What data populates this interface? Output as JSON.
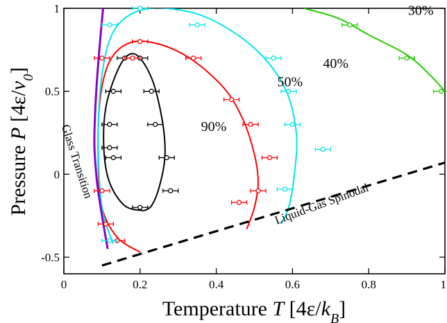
{
  "chart_data": {
    "type": "scatter",
    "xlabel": "Temperature T [4ε/k_B]",
    "ylabel": "Pressure P [4ε/v_0]",
    "xlim": [
      0,
      1
    ],
    "ylim": [
      -0.6,
      1
    ],
    "xticks": [
      {
        "value": 0,
        "label": "0"
      },
      {
        "value": 0.2,
        "label": "0.2"
      },
      {
        "value": 0.4,
        "label": "0.4"
      },
      {
        "value": 0.6,
        "label": "0.6"
      },
      {
        "value": 0.8,
        "label": "0.8"
      },
      {
        "value": 1,
        "label": "1"
      }
    ],
    "yticks": [
      {
        "value": -0.5,
        "label": "-0.5"
      },
      {
        "value": 0,
        "label": "0"
      },
      {
        "value": 0.5,
        "label": "0.5"
      },
      {
        "value": 1,
        "label": "1"
      }
    ],
    "grid": false,
    "legend": "none",
    "series": [
      {
        "name": "90%",
        "color": "#000000",
        "points": [
          [
            0.16,
            0.7
          ],
          [
            0.2,
            0.7
          ],
          [
            0.13,
            0.5
          ],
          [
            0.23,
            0.5
          ],
          [
            0.12,
            0.3
          ],
          [
            0.24,
            0.3
          ],
          [
            0.13,
            0.1
          ],
          [
            0.27,
            0.1
          ],
          [
            0.12,
            0.16
          ],
          [
            0.28,
            -0.1
          ],
          [
            0.2,
            -0.2
          ]
        ],
        "curve": [
          [
            0.21,
            -0.22
          ],
          [
            0.16,
            -0.19
          ],
          [
            0.12,
            -0.05
          ],
          [
            0.105,
            0.15
          ],
          [
            0.11,
            0.4
          ],
          [
            0.14,
            0.62
          ],
          [
            0.17,
            0.72
          ],
          [
            0.2,
            0.7
          ],
          [
            0.235,
            0.55
          ],
          [
            0.26,
            0.3
          ],
          [
            0.265,
            0.1
          ],
          [
            0.25,
            -0.08
          ],
          [
            0.23,
            -0.19
          ],
          [
            0.21,
            -0.22
          ]
        ]
      },
      {
        "name": "50%",
        "color": "#ff0000",
        "points": [
          [
            0.2,
            0.8
          ],
          [
            0.1,
            0.7
          ],
          [
            0.18,
            0.7
          ],
          [
            0.34,
            0.7
          ],
          [
            0.44,
            0.45
          ],
          [
            0.49,
            0.3
          ],
          [
            0.54,
            0.1
          ],
          [
            0.51,
            -0.1
          ],
          [
            0.46,
            -0.17
          ],
          [
            0.1,
            -0.1
          ],
          [
            0.11,
            -0.3
          ],
          [
            0.14,
            -0.4
          ]
        ],
        "curve": [
          [
            0.2,
            -0.47
          ],
          [
            0.14,
            -0.38
          ],
          [
            0.1,
            -0.2
          ],
          [
            0.09,
            0.1
          ],
          [
            0.095,
            0.45
          ],
          [
            0.12,
            0.68
          ],
          [
            0.17,
            0.79
          ],
          [
            0.24,
            0.79
          ],
          [
            0.33,
            0.7
          ],
          [
            0.42,
            0.52
          ],
          [
            0.47,
            0.33
          ],
          [
            0.5,
            0.12
          ],
          [
            0.51,
            -0.05
          ],
          [
            0.5,
            -0.2
          ],
          [
            0.48,
            -0.33
          ]
        ]
      },
      {
        "name": "40%",
        "color": "#00e5ee",
        "points": [
          [
            0.2,
            1.0
          ],
          [
            0.12,
            0.9
          ],
          [
            0.35,
            0.9
          ],
          [
            0.55,
            0.7
          ],
          [
            0.59,
            0.5
          ],
          [
            0.6,
            0.3
          ],
          [
            0.68,
            0.15
          ],
          [
            0.58,
            -0.09
          ],
          [
            0.12,
            -0.4
          ]
        ],
        "curve": [
          [
            0.13,
            -0.42
          ],
          [
            0.1,
            -0.2
          ],
          [
            0.09,
            0.2
          ],
          [
            0.1,
            0.6
          ],
          [
            0.13,
            0.86
          ],
          [
            0.19,
            0.98
          ],
          [
            0.27,
            1.0
          ],
          [
            0.38,
            0.94
          ],
          [
            0.5,
            0.76
          ],
          [
            0.58,
            0.52
          ],
          [
            0.61,
            0.25
          ],
          [
            0.605,
            0.0
          ],
          [
            0.59,
            -0.2
          ],
          [
            0.57,
            -0.3
          ]
        ]
      },
      {
        "name": "30%",
        "color": "#22cc00",
        "points": [
          [
            0.75,
            0.9
          ],
          [
            0.9,
            0.7
          ],
          [
            0.99,
            0.5
          ]
        ],
        "curve": [
          [
            0.63,
            1.0
          ],
          [
            0.72,
            0.94
          ],
          [
            0.8,
            0.84
          ],
          [
            0.9,
            0.72
          ],
          [
            0.96,
            0.6
          ],
          [
            1.0,
            0.5
          ]
        ]
      },
      {
        "name": "Glass Transition",
        "color": "#8a00c8",
        "points": [],
        "curve": [
          [
            0.103,
            1.0
          ],
          [
            0.095,
            0.8
          ],
          [
            0.085,
            0.5
          ],
          [
            0.08,
            0.2
          ],
          [
            0.085,
            0.0
          ],
          [
            0.09,
            -0.1
          ],
          [
            0.1,
            -0.25
          ],
          [
            0.115,
            -0.45
          ]
        ]
      },
      {
        "name": "Liquid-Gas Spinodal",
        "color": "#000000",
        "points": [],
        "curve": [
          [
            0.1,
            -0.55
          ],
          [
            1.0,
            0.07
          ]
        ]
      }
    ],
    "annotations": [
      {
        "text": "30%",
        "x": 0.97,
        "y": 0.96
      },
      {
        "text": "40%",
        "x": 0.68,
        "y": 0.64
      },
      {
        "text": "50%",
        "x": 0.56,
        "y": 0.53
      },
      {
        "text": "90%",
        "x": 0.36,
        "y": 0.26
      },
      {
        "text": "Glass Transition",
        "x": 0.025,
        "y": 0.07
      },
      {
        "text": "Liquid-Gas Spinodal",
        "x": 0.68,
        "y": -0.2
      }
    ]
  }
}
